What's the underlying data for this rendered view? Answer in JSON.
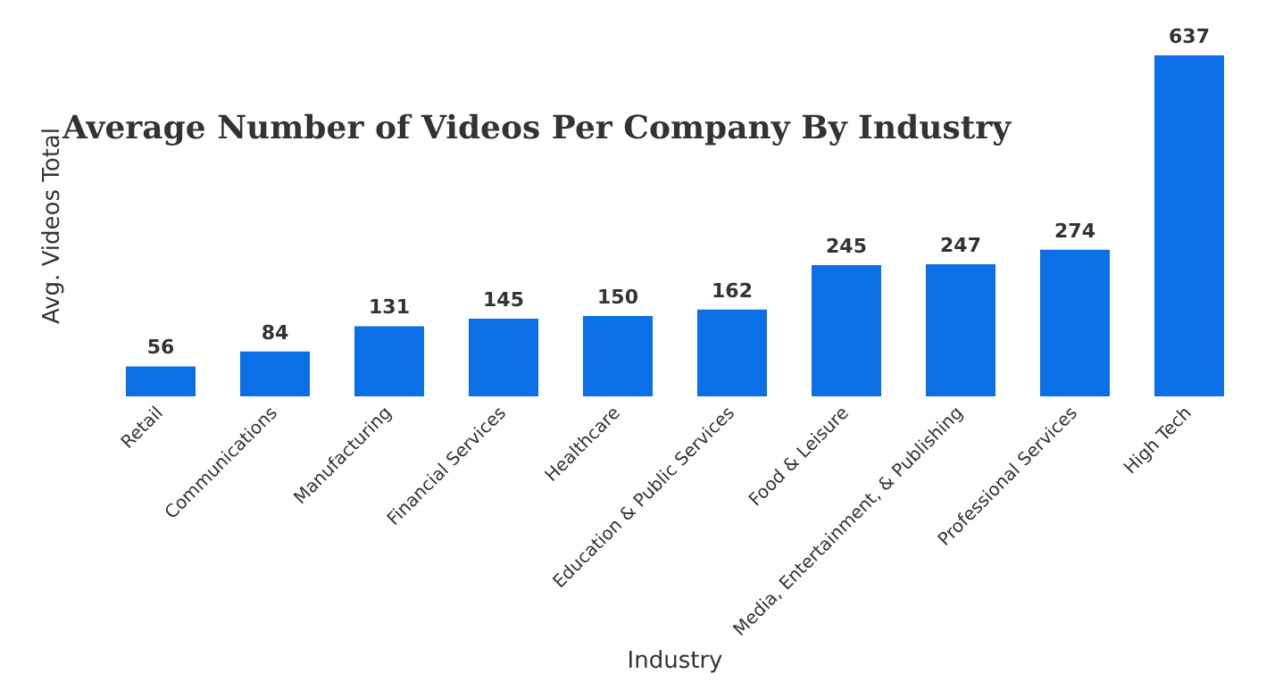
{
  "chart_data": {
    "type": "bar",
    "title": "Average Number of Videos Per Company By Industry",
    "xlabel": "Industry",
    "ylabel": "Avg. Videos Total",
    "categories": [
      "Retail",
      "Communications",
      "Manufacturing",
      "Financial Services",
      "Healthcare",
      "Education & Public Services",
      "Food & Leisure",
      "Media, Entertainment, & Publishing",
      "Professional Services",
      "High Tech"
    ],
    "values": [
      56,
      84,
      131,
      145,
      150,
      162,
      245,
      247,
      274,
      637
    ],
    "color": "#0b6fe8",
    "data_labels": true,
    "grid": false
  }
}
